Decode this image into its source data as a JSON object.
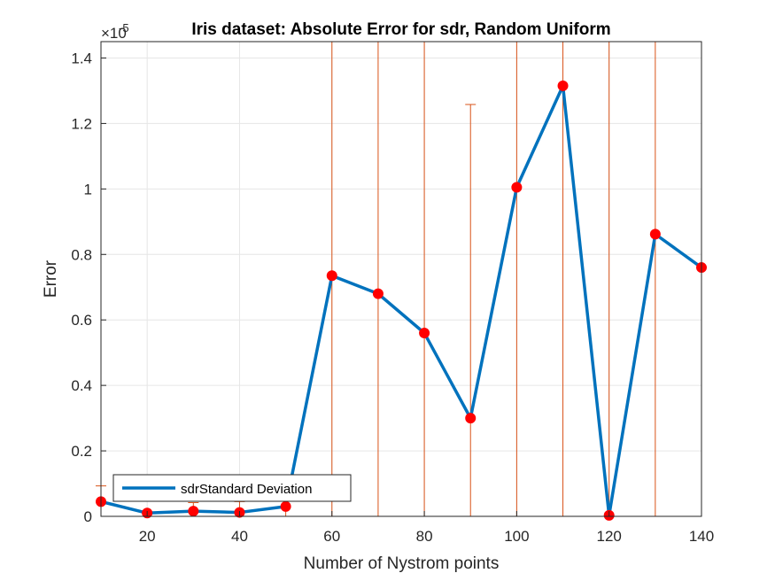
{
  "chart_data": {
    "type": "line",
    "title": "Iris dataset: Absolute Error for sdr, Random Uniform",
    "xlabel": "Number of Nystrom points",
    "ylabel": "Error",
    "exponent_label": "×10",
    "exponent_power": "-5",
    "xlim": [
      10,
      140
    ],
    "ylim": [
      0,
      1.45
    ],
    "xticks": [
      20,
      40,
      60,
      80,
      100,
      120,
      140
    ],
    "yticks": [
      0,
      0.2,
      0.4,
      0.6,
      0.8,
      1,
      1.2,
      1.4
    ],
    "ytick_labels": [
      "0",
      "0.2",
      "0.4",
      "0.6",
      "0.8",
      "1",
      "1.2",
      "1.4"
    ],
    "grid": true,
    "legend_position": "bottom-left",
    "series": [
      {
        "name": "sdrStandard Deviation",
        "color": "#0072BD",
        "marker_color": "#FF0000",
        "x": [
          10,
          20,
          30,
          40,
          50,
          60,
          70,
          80,
          90,
          100,
          110,
          120,
          130,
          140
        ],
        "values": [
          0.045,
          0.01,
          0.016,
          0.012,
          0.03,
          0.735,
          0.68,
          0.56,
          0.3,
          1.005,
          1.315,
          0.003,
          0.862,
          0.76
        ]
      }
    ],
    "error_bars": {
      "color": "#D95319",
      "lower": [
        0,
        0,
        0,
        0,
        0,
        0,
        0,
        0,
        0,
        0,
        0,
        0,
        0,
        0
      ],
      "upper": [
        0.093,
        0.01,
        0.042,
        0.045,
        0.125,
        1.45,
        1.45,
        1.45,
        1.258,
        1.45,
        1.45,
        1.45,
        1.45,
        1.45
      ]
    }
  }
}
